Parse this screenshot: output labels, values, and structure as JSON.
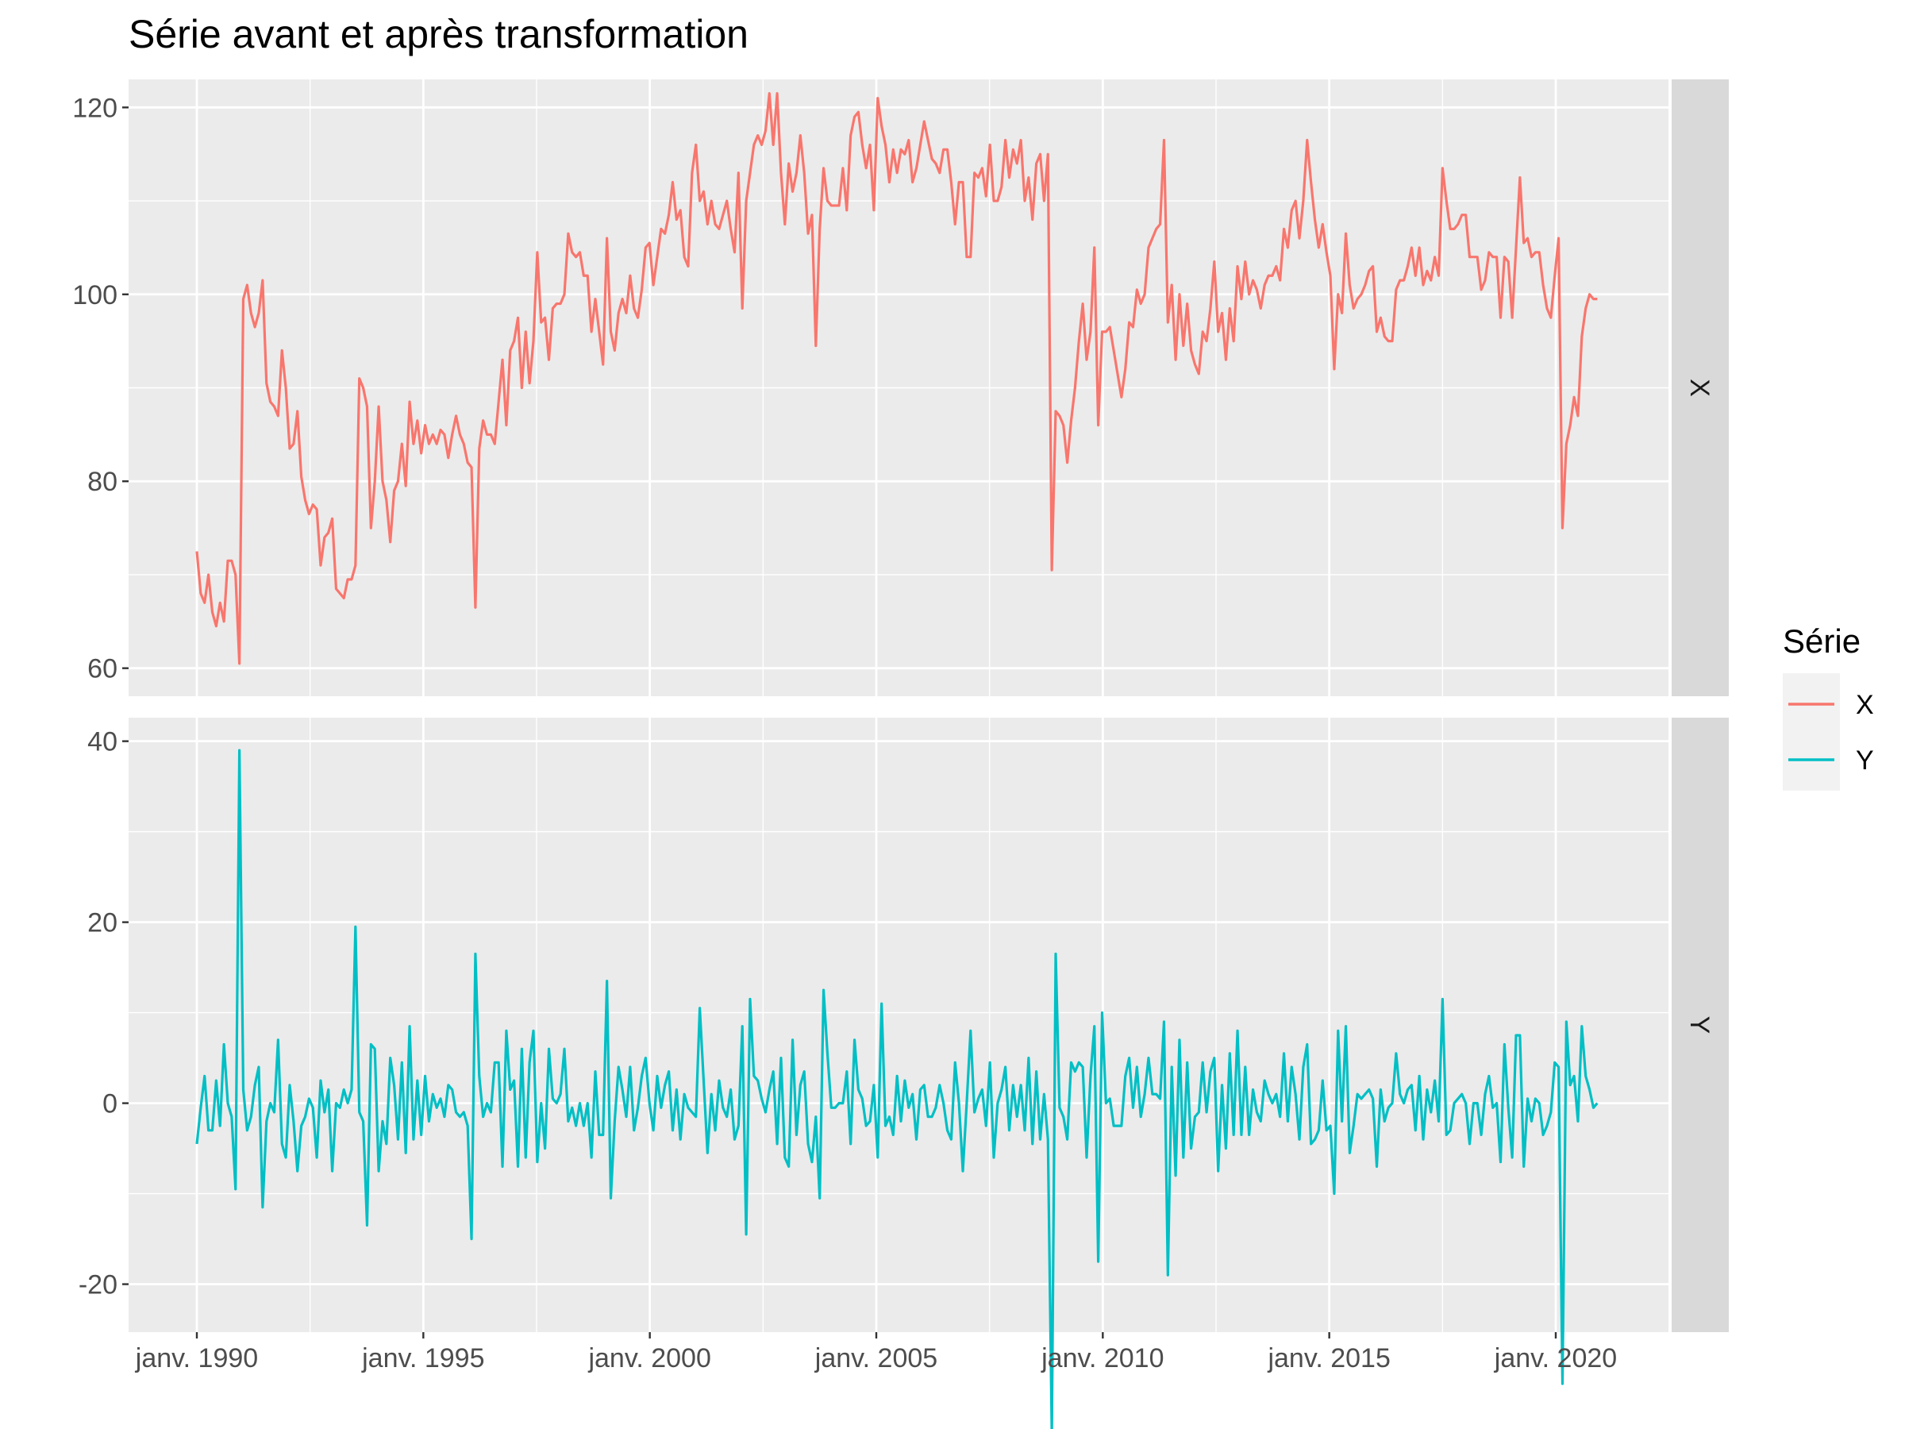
{
  "colors": {
    "panel_bg": "#EBEBEB",
    "grid": "#FFFFFF",
    "strip_bg": "#D9D9D9",
    "tick": "#333333",
    "X": "#F8766D",
    "Y": "#00BFC4"
  },
  "chart_data": {
    "type": "line",
    "title": "Série avant et après transformation",
    "xlabel": "",
    "ylabel": "",
    "x_range": [
      1990.0,
      2020.917
    ],
    "x_step": "monthly",
    "x_ticks": [
      {
        "value": 1990,
        "label": "janv. 1990"
      },
      {
        "value": 1995,
        "label": "janv. 1995"
      },
      {
        "value": 2000,
        "label": "janv. 2000"
      },
      {
        "value": 2005,
        "label": "janv. 2005"
      },
      {
        "value": 2010,
        "label": "janv. 2010"
      },
      {
        "value": 2015,
        "label": "janv. 2015"
      },
      {
        "value": 2020,
        "label": "janv. 2020"
      }
    ],
    "grid": true,
    "legend": {
      "title": "Série",
      "position": "right",
      "entries": [
        "X",
        "Y"
      ]
    },
    "panels": [
      {
        "strip": "X",
        "series": "X",
        "ylim": [
          60,
          120
        ],
        "yticks": [
          {
            "value": 60,
            "label": "60"
          },
          {
            "value": 80,
            "label": "80"
          },
          {
            "value": 100,
            "label": "100"
          },
          {
            "value": 120,
            "label": "120"
          }
        ],
        "values": [
          72.5,
          68,
          67,
          70,
          66,
          64.5,
          67,
          65,
          71.5,
          71.5,
          70,
          60.5,
          99.5,
          101,
          98,
          96.5,
          98,
          101.5,
          90.5,
          88.5,
          88,
          87,
          94,
          90,
          83.5,
          84,
          87.5,
          80.5,
          78,
          76.5,
          77.5,
          77,
          71,
          74,
          74.5,
          76,
          68.5,
          68,
          67.5,
          69.5,
          69.5,
          71,
          91,
          90,
          88,
          75,
          80,
          88,
          80,
          78,
          73.5,
          79,
          80,
          84,
          79.5,
          88.5,
          84,
          86.5,
          83,
          86,
          84,
          85,
          84,
          85.5,
          85,
          82.5,
          85,
          87,
          85,
          84,
          82,
          81.5,
          66.5,
          83.5,
          86.5,
          85,
          85,
          84,
          88.5,
          93,
          86,
          94,
          95,
          97.5,
          90,
          96,
          90.5,
          95,
          104.5,
          97,
          97.5,
          93,
          98.5,
          99,
          99,
          100,
          106.5,
          104.5,
          104,
          104.5,
          102,
          102,
          96,
          99.5,
          96,
          92.5,
          106,
          96,
          94,
          98,
          99.5,
          98,
          102,
          98.5,
          97.5,
          100.5,
          105,
          105.5,
          101,
          104,
          107,
          106.5,
          108.5,
          112,
          108,
          109,
          104,
          103,
          113,
          116,
          110,
          111,
          107.5,
          110,
          107.5,
          107,
          108.5,
          110,
          107,
          104.5,
          113,
          98.5,
          110,
          113,
          116,
          117,
          116,
          117.5,
          121.5,
          116,
          121.5,
          113,
          107.5,
          114,
          111,
          113,
          117,
          113,
          106.5,
          108.5,
          94.5,
          107,
          113.5,
          110,
          109.5,
          109.5,
          109.5,
          113.5,
          109,
          117,
          119,
          119.5,
          116,
          113.5,
          116,
          109,
          121,
          118,
          116,
          112,
          115.5,
          113,
          115.5,
          115,
          116.5,
          112,
          113.5,
          116,
          118.5,
          116.5,
          114.5,
          114,
          113,
          115.5,
          115.5,
          112,
          107.5,
          112,
          112,
          104,
          104,
          113,
          112.5,
          113.5,
          110.5,
          116,
          110,
          110,
          111.5,
          116.5,
          112.5,
          115.5,
          114,
          116.5,
          110,
          112.5,
          108,
          114,
          115,
          110,
          115,
          70.5,
          87.5,
          87,
          86,
          82,
          86.5,
          90,
          95,
          99,
          93,
          96,
          105,
          86,
          96,
          96,
          96.5,
          94,
          91.5,
          89,
          92,
          97,
          96.5,
          100.5,
          99,
          100,
          105,
          106,
          107,
          107.5,
          116.5,
          97,
          101,
          93,
          100,
          94.5,
          99,
          94,
          92.5,
          91.5,
          96,
          95,
          98.5,
          103.5,
          96,
          98,
          93,
          98.5,
          95,
          103,
          99.5,
          103.5,
          100,
          101.5,
          100.5,
          98.5,
          101,
          102,
          102,
          103,
          101.5,
          107,
          105,
          109,
          110,
          106,
          110,
          116.5,
          112,
          108,
          105,
          107.5,
          104.5,
          102,
          92,
          100,
          98,
          106.5,
          101,
          98.5,
          99.5,
          100,
          101,
          102.5,
          103,
          96,
          97.5,
          95.5,
          95,
          95,
          100.5,
          101.5,
          101.5,
          103,
          105,
          102,
          105,
          101,
          102.5,
          101.5,
          104,
          102,
          113.5,
          110,
          107,
          107,
          107.5,
          108.5,
          108.5,
          104,
          104,
          104,
          100.5,
          101.5,
          104.5,
          104,
          104,
          97.5,
          104,
          103.5,
          97.5,
          105,
          112.5,
          105.5,
          106,
          104,
          104.5,
          104.5,
          101,
          98.5,
          97.5,
          102,
          106,
          75,
          84,
          86,
          89,
          87,
          95.5,
          98.5,
          100,
          99.5,
          99.5
        ]
      },
      {
        "strip": "Y",
        "series": "Y",
        "ylim": [
          -25,
          40
        ],
        "yticks": [
          {
            "value": -20,
            "label": "-20"
          },
          {
            "value": 0,
            "label": "0"
          },
          {
            "value": 20,
            "label": "20"
          },
          {
            "value": 40,
            "label": "40"
          }
        ],
        "values": [
          -4.5,
          -0.5,
          3,
          -3,
          -3,
          2.5,
          -2.5,
          6.5,
          0,
          -1.5,
          -9.5,
          39,
          1.5,
          -3,
          -1.5,
          2,
          4,
          -11.5,
          -2,
          0,
          -1,
          7,
          -4.5,
          -6,
          2,
          -2,
          -7.5,
          -2.5,
          -1.5,
          0.5,
          -0.5,
          -6,
          2.5,
          -1,
          1.5,
          -7.5,
          0,
          -0.5,
          1.5,
          0,
          1.5,
          19.5,
          -1,
          -2,
          -13.5,
          6.5,
          6,
          -7.5,
          -2,
          -4.5,
          5,
          2,
          -4,
          4.5,
          -5.5,
          8.5,
          -4,
          2.5,
          -3.5,
          3,
          -2,
          1,
          -0.5,
          0.5,
          -1.5,
          2,
          1.5,
          -1,
          -1.5,
          -1,
          -2.5,
          -15,
          16.5,
          3,
          -1.5,
          0,
          -1,
          4.5,
          4.5,
          -7,
          8,
          1.5,
          2.5,
          -7,
          6,
          -6,
          4.5,
          8,
          -6.5,
          0,
          -5,
          6,
          0.5,
          0,
          1,
          6,
          -2,
          -0.5,
          -2.5,
          0,
          -2.5,
          0,
          -6,
          3.5,
          -3.5,
          -3.5,
          13.5,
          -10.5,
          -2,
          4,
          1.5,
          -1.5,
          4,
          -3,
          -0.5,
          3,
          5,
          0,
          -3,
          3,
          -0.5,
          2,
          3.5,
          -3,
          1.5,
          -4,
          1,
          -0.5,
          -1,
          -1.5,
          10.5,
          2.5,
          -5.5,
          1,
          -3,
          2.5,
          -0.5,
          -1.5,
          1.5,
          -4,
          -2.5,
          8.5,
          -14.5,
          11.5,
          3,
          2.5,
          0.5,
          -1,
          1.5,
          3.5,
          -4.5,
          5,
          -6,
          -7,
          7,
          -3.5,
          2,
          3.5,
          -4.5,
          -6.5,
          -1.5,
          -10.5,
          12.5,
          5.5,
          -0.5,
          -0.5,
          0,
          0,
          3.5,
          -4.5,
          7,
          1.5,
          0.5,
          -2.5,
          -2,
          2,
          -6,
          11,
          -2.5,
          -1.5,
          -3.5,
          3,
          -2,
          2.5,
          -0.5,
          1,
          -4,
          1.5,
          2,
          -1.5,
          -1.5,
          -0.5,
          2,
          0,
          -3,
          -4,
          4.5,
          0,
          -7.5,
          0,
          8,
          -1,
          0.5,
          1.5,
          -2.5,
          4.5,
          -6,
          0,
          1.5,
          4,
          -3,
          2,
          -1.5,
          2,
          -3,
          5,
          -4.5,
          3.5,
          -4,
          1,
          -4,
          -36.5,
          16.5,
          -0.5,
          -1.5,
          -4,
          4.5,
          3.5,
          4.5,
          4,
          -6,
          3,
          8.5,
          -17.5,
          10,
          0,
          0.5,
          -2.5,
          -2.5,
          -2.5,
          3,
          5,
          -0.5,
          4,
          -1.5,
          1,
          5,
          1,
          1,
          0.5,
          9,
          -19,
          4,
          -8,
          7,
          -6,
          4.5,
          -5,
          -1.5,
          -1,
          4.5,
          -1,
          3.5,
          5,
          -7.5,
          2,
          -5,
          5.5,
          -3.5,
          8,
          -3.5,
          4,
          -3.5,
          1.5,
          -1,
          -2,
          2.5,
          1,
          0,
          1,
          -1.5,
          5.5,
          -2,
          4,
          1,
          -4,
          4,
          6.5,
          -4.5,
          -4,
          -3,
          2.5,
          -3,
          -2.5,
          -10,
          8,
          -2,
          8.5,
          -5.5,
          -2.5,
          1,
          0.5,
          1,
          1.5,
          0.5,
          -7,
          1.5,
          -2,
          -0.5,
          0,
          5.5,
          1,
          0,
          1.5,
          2,
          -3,
          3,
          -4,
          1.5,
          -1,
          2.5,
          -2,
          11.5,
          -3.5,
          -3,
          0,
          0.5,
          1,
          0,
          -4.5,
          0,
          0,
          -3.5,
          1,
          3,
          -0.5,
          0,
          -6.5,
          6.5,
          -0.5,
          -6,
          7.5,
          7.5,
          -7,
          0.5,
          -2,
          0.5,
          0,
          -3.5,
          -2.5,
          -1,
          4.5,
          4,
          -31,
          9,
          2,
          3,
          -2,
          8.5,
          3,
          1.5,
          -0.5,
          0
        ]
      }
    ]
  }
}
